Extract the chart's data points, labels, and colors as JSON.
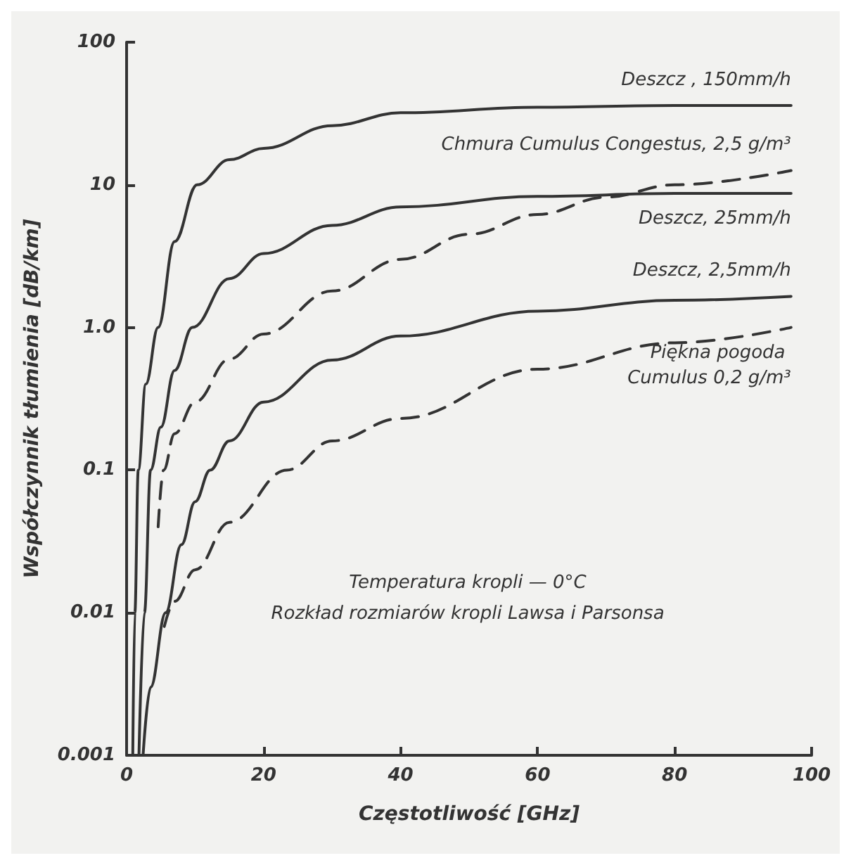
{
  "chart_data": {
    "type": "line",
    "xlabel": "Częstotliwość [GHz]",
    "ylabel": "Współczynnik tłumienia [dB/km]",
    "xlim": [
      0,
      100
    ],
    "xticks": [
      0,
      20,
      40,
      60,
      80,
      100
    ],
    "ylim": [
      0.001,
      100
    ],
    "yticks": [
      0.001,
      0.01,
      0.1,
      {
        "value": 1,
        "label": "1.0"
      },
      10,
      100
    ],
    "log": "y",
    "grid": false,
    "legend": false,
    "marker": "none",
    "series": [
      {
        "name": "Deszcz , 150mm/h",
        "color": "#333333",
        "line_style": "solid",
        "x": [
          0.9,
          1.2,
          1.7,
          2.8,
          4.6,
          7,
          10.3,
          15,
          20,
          30,
          40,
          60,
          80,
          97
        ],
        "values": [
          0.001,
          0.01,
          0.1,
          0.4,
          1,
          4,
          10,
          15,
          18,
          26,
          32,
          35,
          36,
          36
        ]
      },
      {
        "name": "Chmura Cumulus Congestus, 2,5 g/m³",
        "color": "#333333",
        "line_style": "dashed",
        "x": [
          4.6,
          5.4,
          7,
          10,
          15,
          20,
          30,
          40,
          50,
          60,
          70,
          80,
          97
        ],
        "values": [
          0.04,
          0.1,
          0.18,
          0.3,
          0.6,
          0.9,
          1.8,
          3,
          4.5,
          6.2,
          8.2,
          10,
          12.6
        ]
      },
      {
        "name": "Deszcz, 25mm/h",
        "color": "#333333",
        "line_style": "solid",
        "x": [
          1.8,
          2.6,
          3.5,
          5,
          7,
          9.6,
          15,
          20,
          30,
          40,
          60,
          80,
          97
        ],
        "values": [
          0.001,
          0.01,
          0.1,
          0.2,
          0.5,
          1,
          2.2,
          3.3,
          5.2,
          7,
          8.3,
          8.7,
          8.7
        ]
      },
      {
        "name": "Deszcz, 2,5mm/h",
        "color": "#333333",
        "line_style": "solid",
        "x": [
          2.4,
          3.5,
          5.7,
          8,
          10,
          12.2,
          15,
          20,
          30,
          40,
          60,
          80,
          97
        ],
        "values": [
          0.001,
          0.003,
          0.01,
          0.03,
          0.06,
          0.1,
          0.16,
          0.3,
          0.59,
          0.87,
          1.3,
          1.55,
          1.65
        ]
      },
      {
        "name": "Piękna pogoda Cumulus 0,2 g/m³",
        "color": "#333333",
        "line_style": "dashed",
        "x": [
          5.5,
          7,
          10,
          15,
          23.4,
          30,
          40,
          60,
          80,
          97
        ],
        "values": [
          0.008,
          0.012,
          0.02,
          0.043,
          0.1,
          0.16,
          0.23,
          0.51,
          0.78,
          1
        ]
      }
    ],
    "annotations": [
      "Temperatura kropli — 0°C",
      "Rozkład rozmiarów kropli Lawsa i Parsonsa"
    ]
  }
}
